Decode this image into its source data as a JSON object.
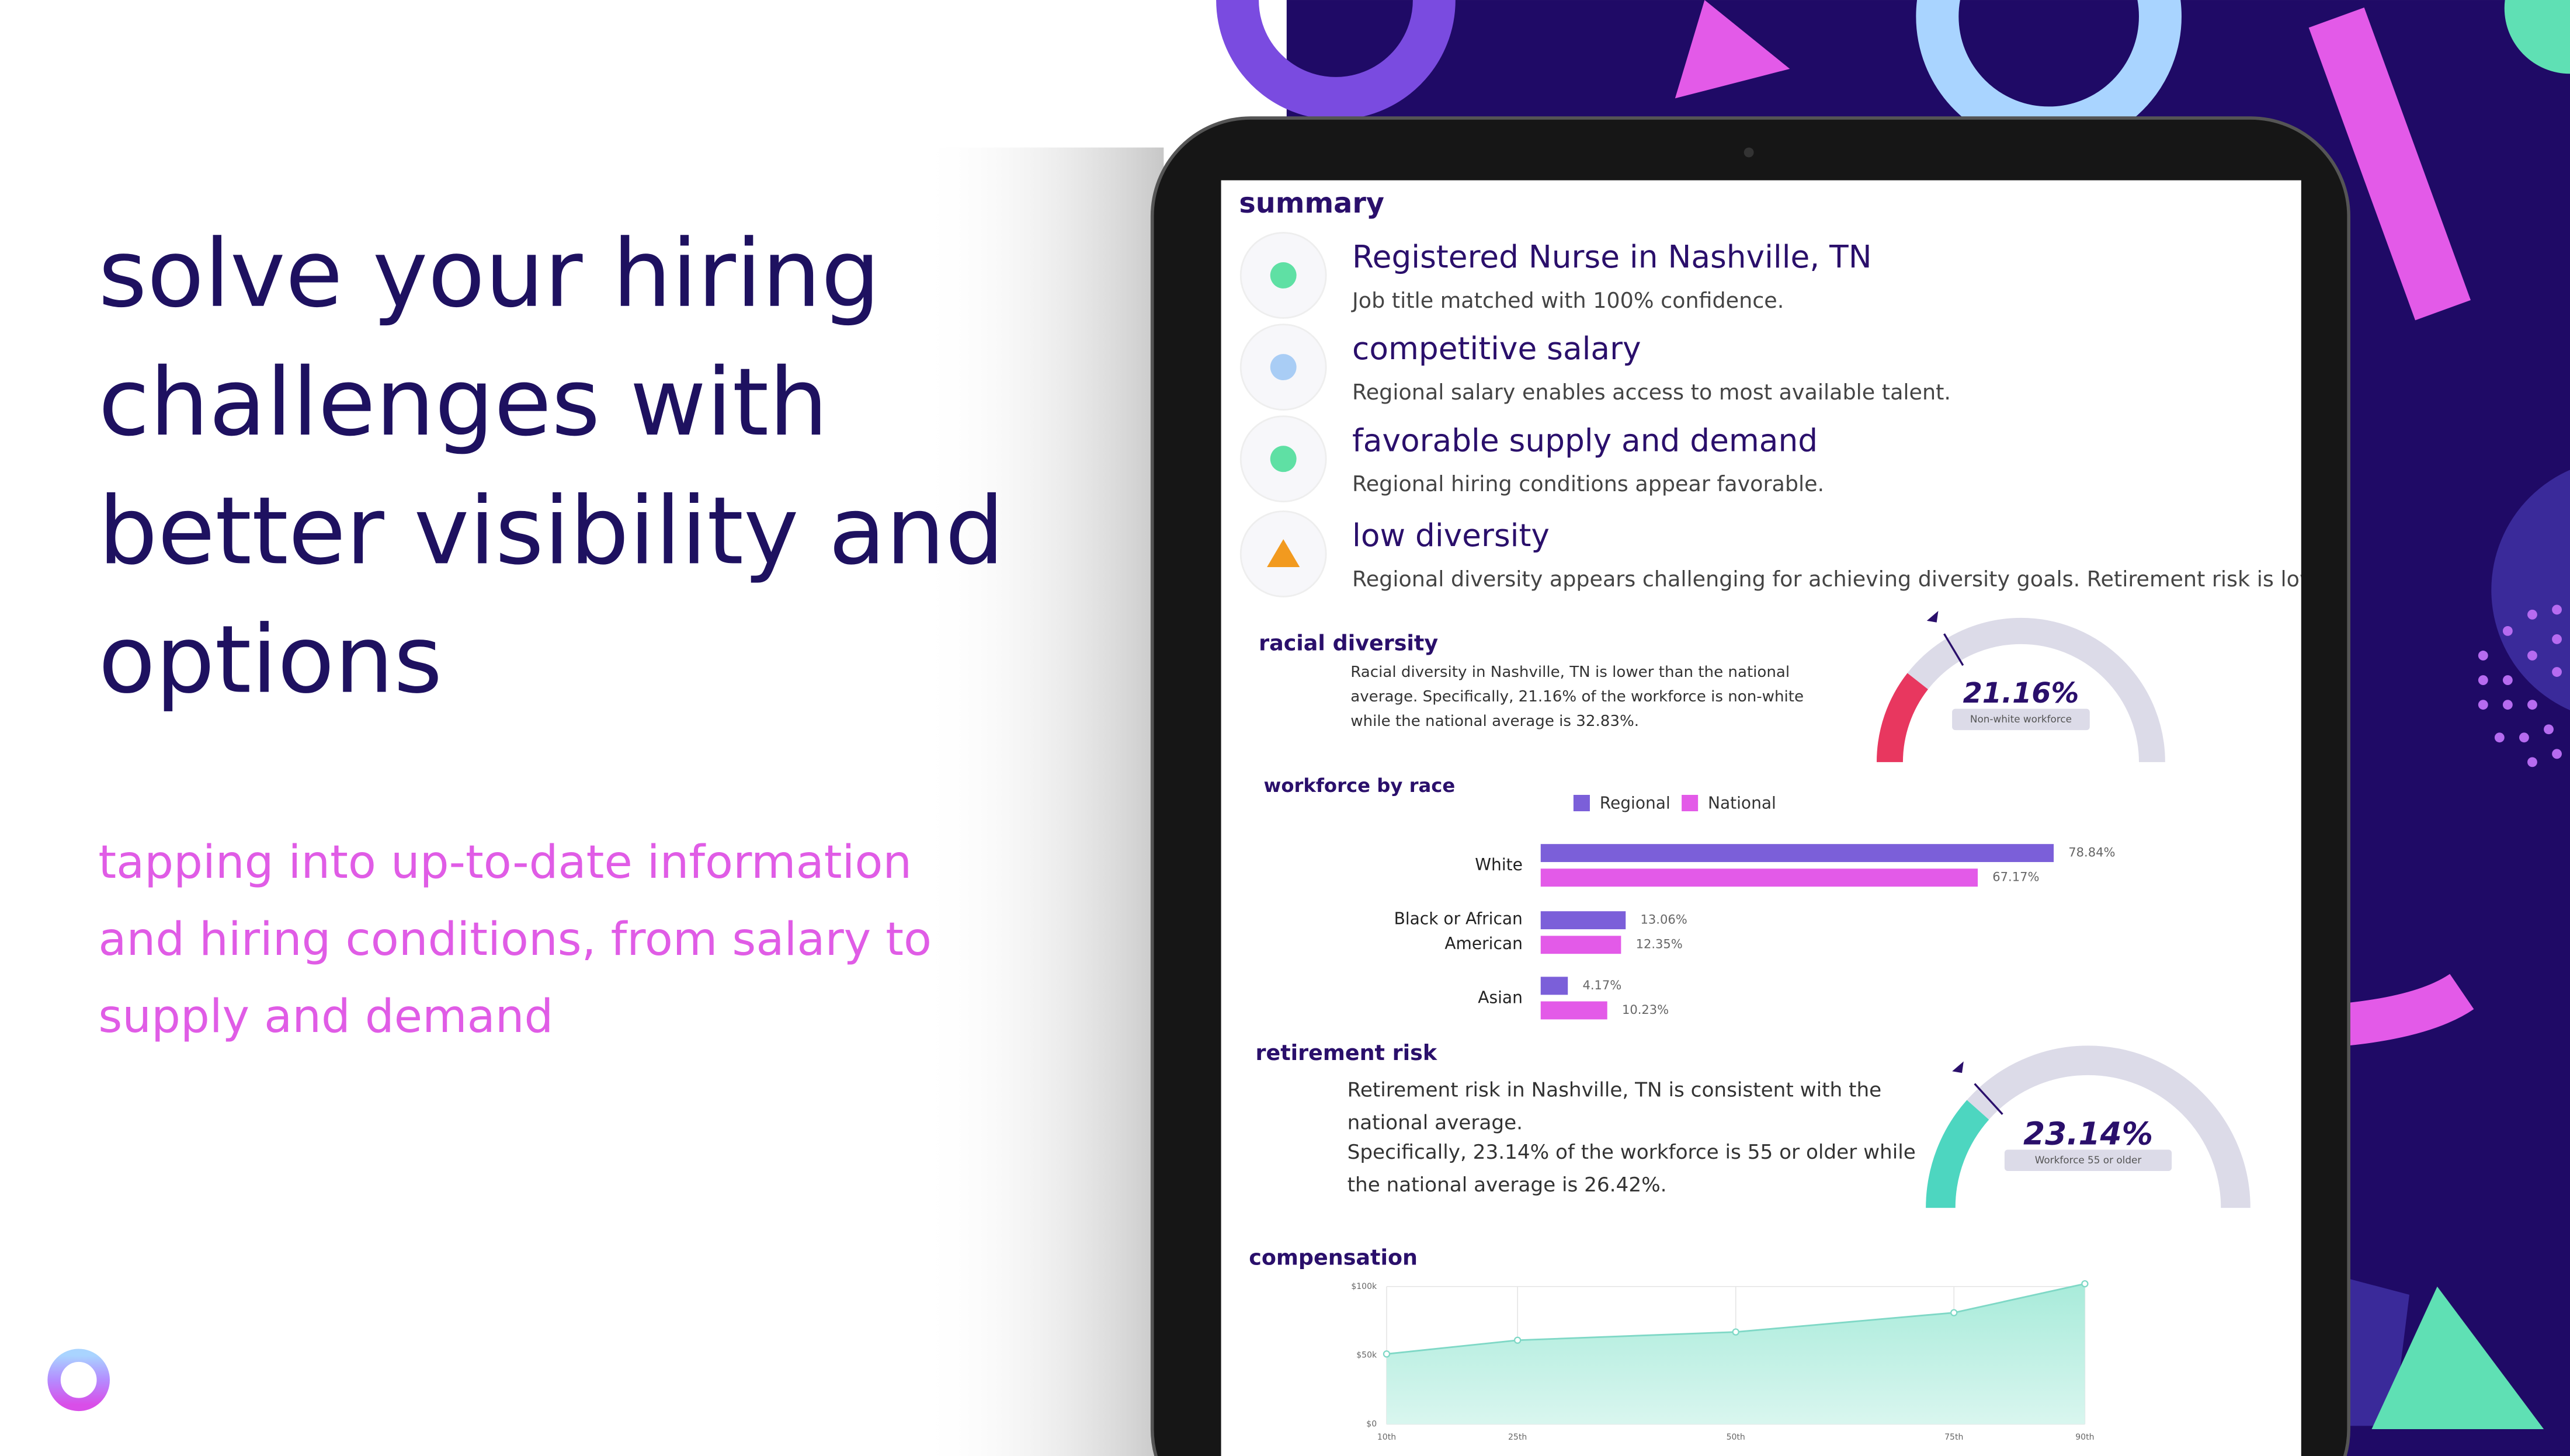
{
  "headline": [
    "solve your hiring",
    "challenges with",
    "better visibility and",
    "options"
  ],
  "subheading": [
    "tapping into up-to-date information",
    "and hiring conditions, from salary to",
    "supply and demand"
  ],
  "summary": {
    "title": "summary",
    "items": [
      {
        "title": "Registered Nurse in Nashville, TN",
        "text": "Job title matched with 100% confidence."
      },
      {
        "title": "competitive salary",
        "text": "Regional salary enables access to most available talent."
      },
      {
        "title": "favorable supply and demand",
        "text": "Regional hiring conditions appear favorable."
      },
      {
        "title": "low diversity",
        "text": "Regional diversity appears challenging for achieving diversity goals. Retirement risk is low."
      }
    ]
  },
  "racial_diversity": {
    "title": "racial diversity",
    "text": "Racial diversity in Nashville, TN is lower than the national average. Specifically, 21.16% of the workforce is non-white while the national average is 32.83%.",
    "gauge": {
      "value": 21.16,
      "value_label": "21.16%",
      "marker": 32.83,
      "lim": [
        0,
        100
      ],
      "caption": "Non-white workforce",
      "color": "#e8375f"
    }
  },
  "workforce_by_race": {
    "type": "bar",
    "title": "workforce by race",
    "categories": [
      "White",
      "Black or African American",
      "Asian"
    ],
    "series": [
      {
        "name": "Regional",
        "color": "#7b5fd9",
        "values": [
          78.84,
          13.06,
          4.17
        ],
        "value_labels": [
          "78.84%",
          "13.06%",
          "4.17%"
        ]
      },
      {
        "name": "National",
        "color": "#e35ae8",
        "values": [
          67.17,
          12.35,
          10.23
        ],
        "value_labels": [
          "67.17%",
          "12.35%",
          "10.23%"
        ]
      }
    ],
    "xlim": [
      0,
      100
    ]
  },
  "retirement_risk": {
    "title": "retirement risk",
    "text": [
      "Retirement risk in Nashville, TN is consistent with the national average.",
      "Specifically, 23.14% of the workforce is 55 or older while the national average is 26.42%."
    ],
    "gauge": {
      "value": 23.14,
      "value_label": "23.14%",
      "marker": 26.42,
      "lim": [
        0,
        100
      ],
      "caption": "Workforce 55 or older",
      "color": "#4dd6c0"
    }
  },
  "compensation": {
    "type": "area",
    "title": "compensation",
    "x": [
      10,
      25,
      50,
      75,
      90
    ],
    "values": [
      51000,
      61000,
      67000,
      81000,
      102000
    ],
    "xlim": [
      10,
      90
    ],
    "xticks": [
      {
        "value": 10,
        "label": "10th"
      },
      {
        "value": 25,
        "label": "25th"
      },
      {
        "value": 50,
        "label": "50th"
      },
      {
        "value": 75,
        "label": "75th"
      },
      {
        "value": 90,
        "label": "90th"
      }
    ],
    "ylim": [
      0,
      100000
    ],
    "yticks": [
      {
        "value": 0,
        "label": "$0"
      },
      {
        "value": 50000,
        "label": "$50k"
      },
      {
        "value": 100000,
        "label": "$100k"
      }
    ],
    "color": "#7fd8c6"
  }
}
